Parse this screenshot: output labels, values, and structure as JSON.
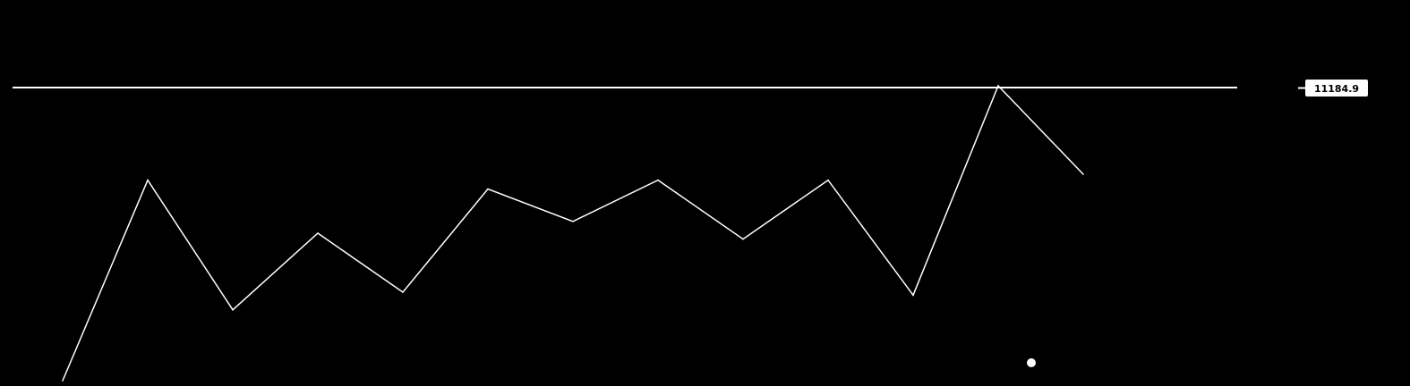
{
  "colors": {
    "background": "#000000",
    "line": "#ffffff",
    "label_bg": "#ffffff",
    "label_text": "#000000"
  },
  "chart_data": {
    "type": "line",
    "title": "",
    "xlabel": "",
    "ylabel": "",
    "grid": false,
    "legend": "none",
    "x": [
      0,
      1,
      2,
      3,
      4,
      5,
      6,
      7,
      8,
      9,
      10,
      11,
      12,
      13,
      14
    ],
    "series": [
      {
        "values": [
          0.0,
          0.68,
          0.24,
          0.5,
          0.3,
          0.65,
          0.54,
          0.68,
          0.48,
          0.68,
          0.29,
          1.0,
          0.7,
          null,
          null
        ]
      }
    ],
    "ylim": [
      0,
      1.02
    ],
    "reference_line": {
      "value": 1.0,
      "label": "11184.9"
    }
  }
}
